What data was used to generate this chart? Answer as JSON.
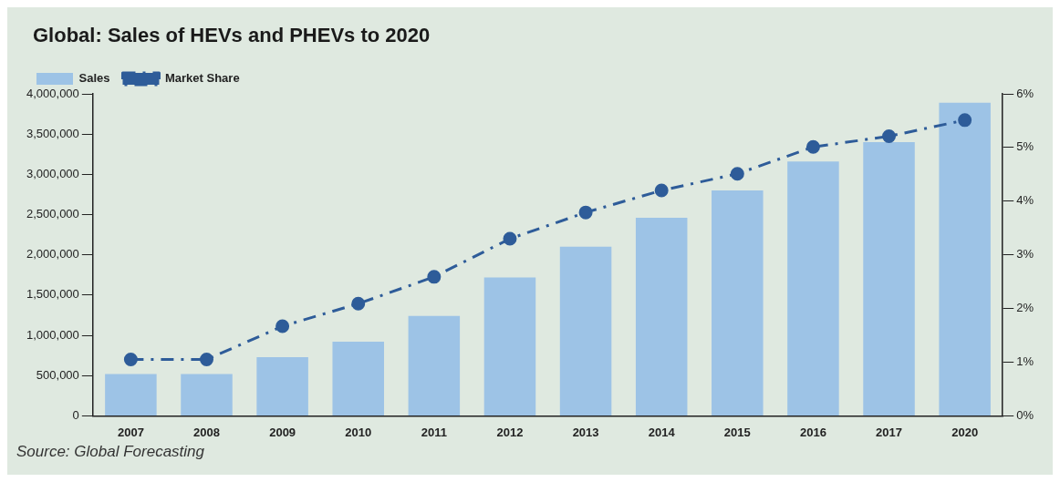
{
  "chart_data": {
    "type": "bar",
    "title": "Global: Sales of HEVs and PHEVs to 2020",
    "categories": [
      "2007",
      "2008",
      "2009",
      "2010",
      "2011",
      "2012",
      "2013",
      "2014",
      "2015",
      "2016",
      "2017",
      "2020"
    ],
    "series": [
      {
        "name": "Sales",
        "color": "#9dc3e6",
        "values": [
          520000,
          520000,
          730000,
          920000,
          1240000,
          1720000,
          2100000,
          2460000,
          2800000,
          3160000,
          3400000,
          3890000
        ]
      },
      {
        "name": "Market Share",
        "type": "line",
        "axis": "y2",
        "color": "#2e5c99",
        "marker": "circle",
        "line_style": "dashed",
        "values": [
          1.05,
          1.05,
          1.67,
          2.09,
          2.59,
          3.3,
          3.79,
          4.2,
          4.51,
          5.01,
          5.21,
          5.51
        ]
      }
    ],
    "ylim": [
      0,
      4000000
    ],
    "yticks": [
      0,
      {
        "value": 500000,
        "label": "500,000"
      },
      {
        "value": 1000000,
        "label": "1,000,000"
      },
      {
        "value": 1500000,
        "label": "1,500,000"
      },
      {
        "value": 2000000,
        "label": "2,000,000"
      },
      {
        "value": 2500000,
        "label": "2,500,000"
      },
      {
        "value": 3000000,
        "label": "3,000,000"
      },
      {
        "value": 3500000,
        "label": "3,500,000"
      },
      {
        "value": 4000000,
        "label": "4,000,000"
      }
    ],
    "y2lim": [
      0,
      6
    ],
    "y2ticks": [
      {
        "value": 0,
        "label": "0%"
      },
      {
        "value": 1,
        "label": "1%"
      },
      {
        "value": 2,
        "label": "2%"
      },
      {
        "value": 3,
        "label": "3%"
      },
      {
        "value": 4,
        "label": "4%"
      },
      {
        "value": 5,
        "label": "5%"
      },
      {
        "value": 6,
        "label": "6%"
      }
    ],
    "grid": false,
    "legend": "top left",
    "annotations": [
      "Source: Global Forecasting"
    ]
  }
}
